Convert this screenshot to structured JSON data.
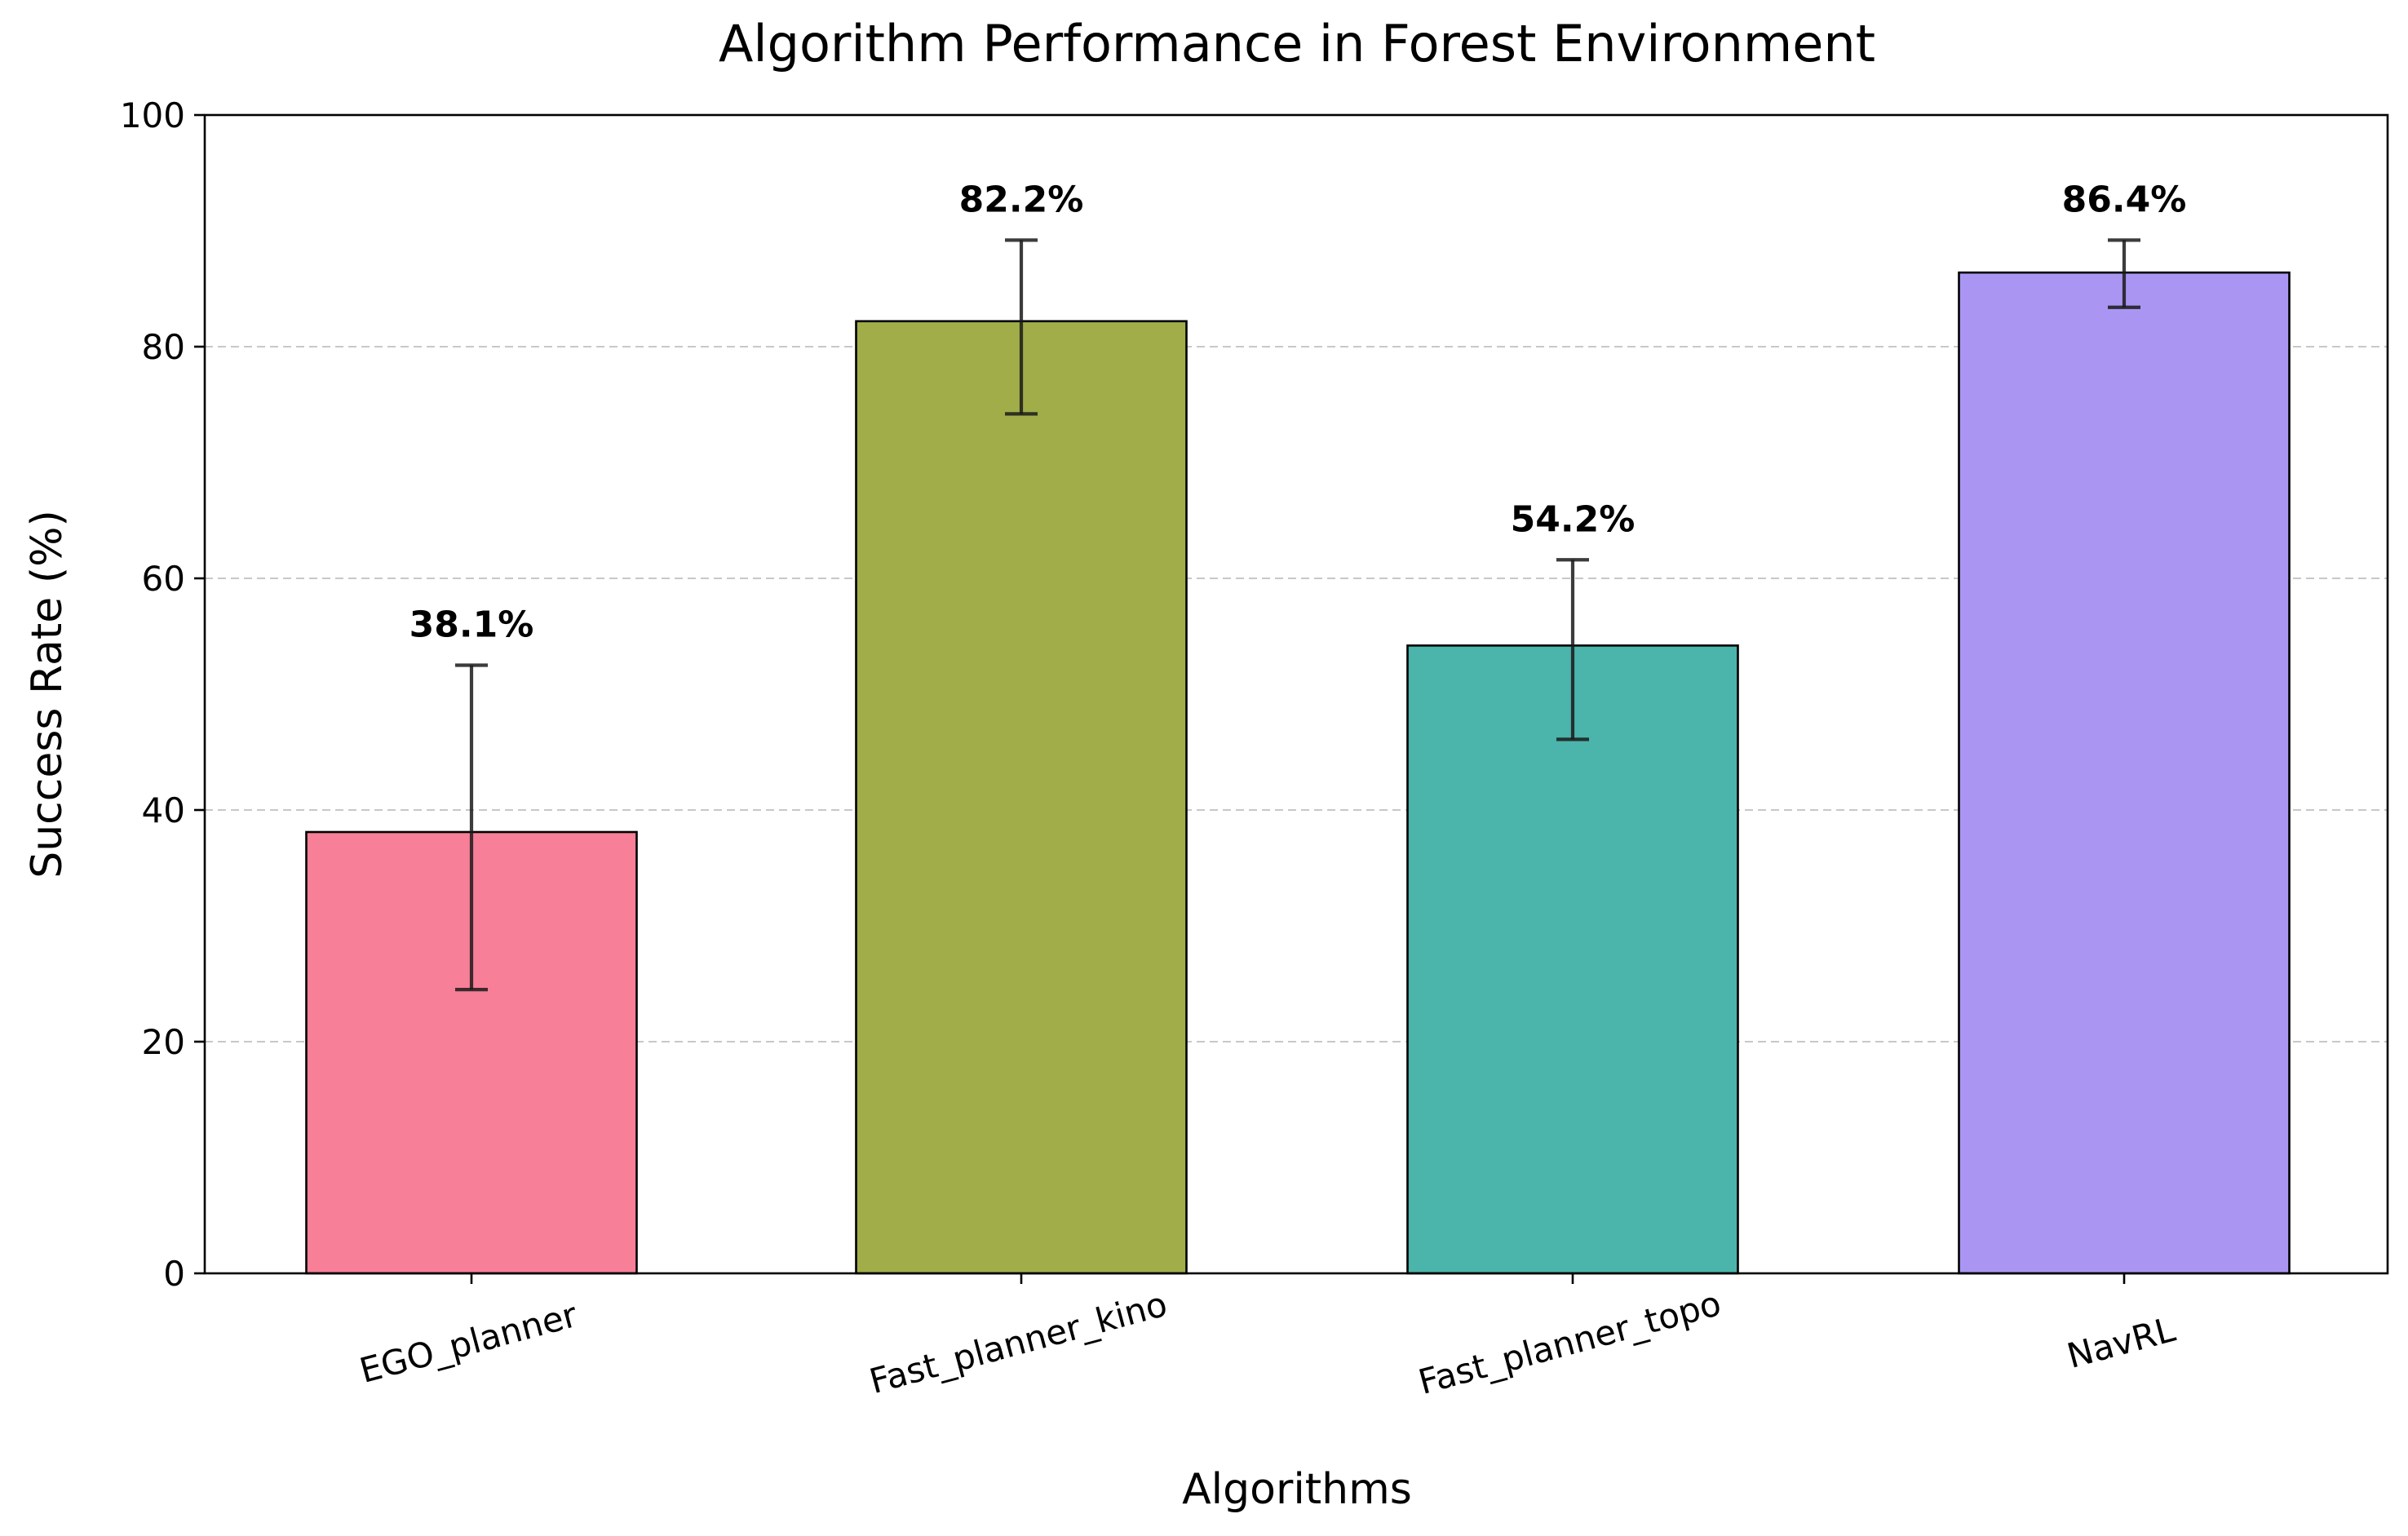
{
  "chart_data": {
    "type": "bar",
    "title": "Algorithm Performance in Forest Environment",
    "xlabel": "Algorithms",
    "ylabel": "Success Rate (%)",
    "categories": [
      "EGO_planner",
      "Fast_planner_kino",
      "Fast_planner_topo",
      "NavRL"
    ],
    "values": [
      38.1,
      82.2,
      54.2,
      86.4
    ],
    "error_low": [
      24.5,
      74.2,
      46.1,
      83.4
    ],
    "error_high": [
      52.5,
      89.2,
      61.6,
      89.2
    ],
    "data_labels": [
      "38.1%",
      "82.2%",
      "54.2%",
      "86.4%"
    ],
    "colors": [
      "#f77f97",
      "#a1ad48",
      "#4bb4ab",
      "#aa96f2"
    ],
    "ylim": [
      0,
      100
    ],
    "yticks": [
      0,
      20,
      40,
      60,
      80,
      100
    ],
    "ytick_labels": [
      "0",
      "20",
      "40",
      "60",
      "80",
      "100"
    ],
    "grid": "horizontal dashed",
    "xtick_rotation_deg": 15
  }
}
